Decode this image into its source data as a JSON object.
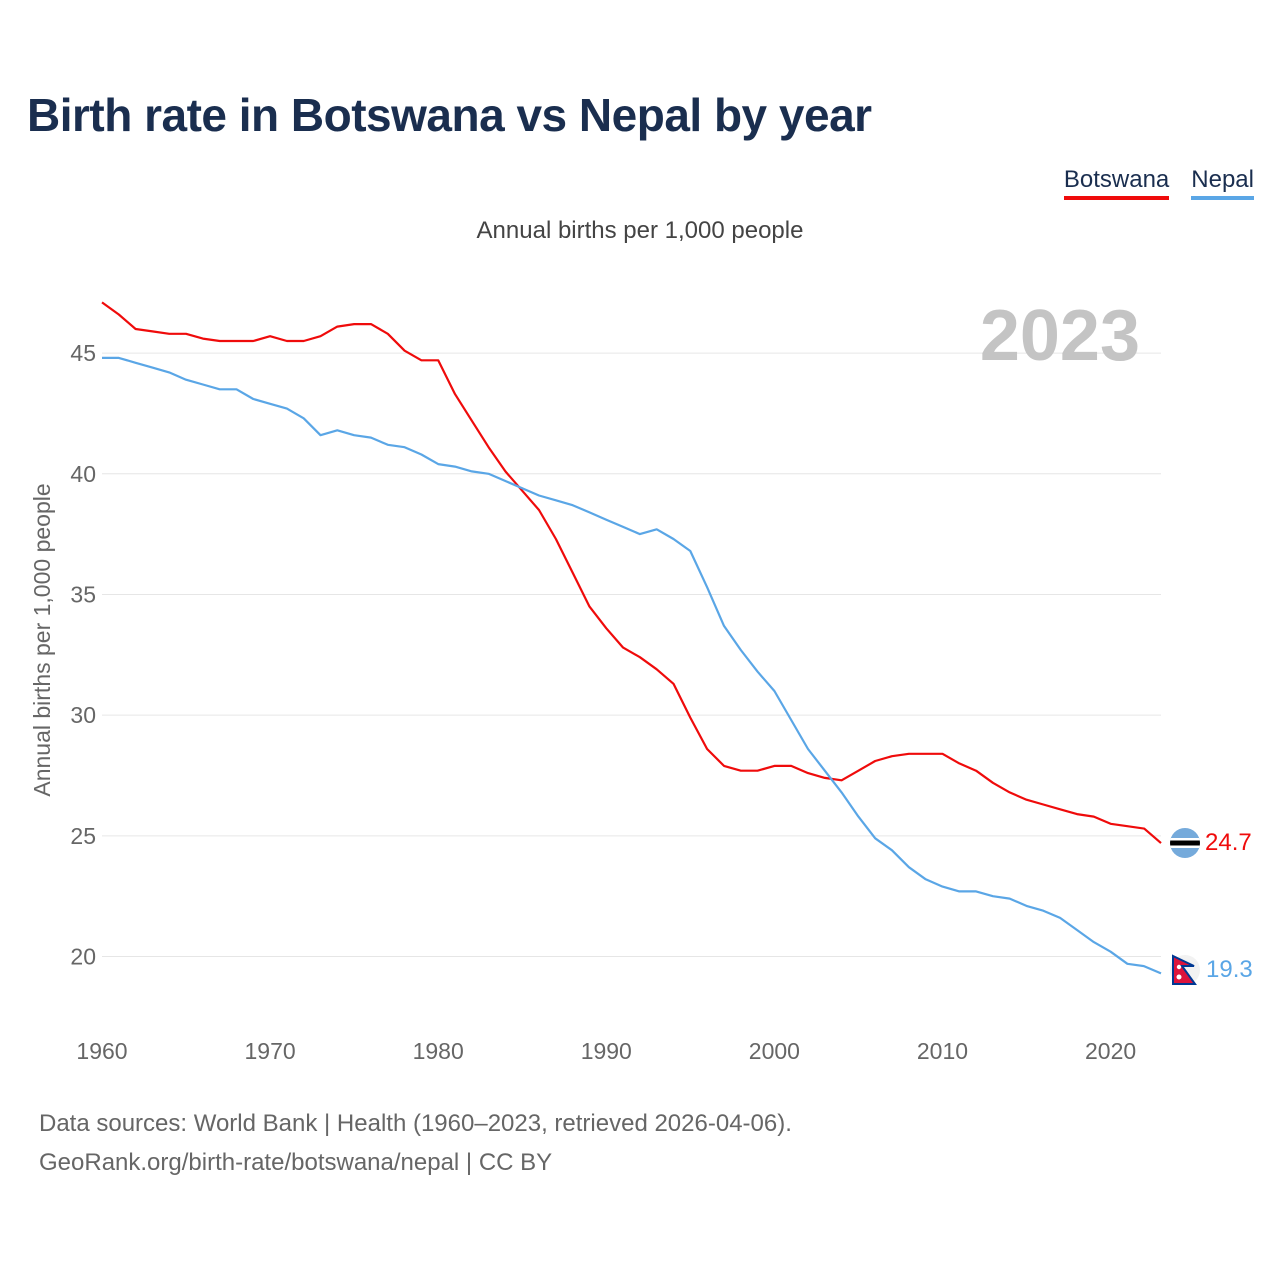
{
  "title": "Birth rate in Botswana vs Nepal by year",
  "subtitle": "Annual births per 1,000 people",
  "legend": [
    "Botswana",
    "Nepal"
  ],
  "year_badge": "2023",
  "footer": {
    "line1": "Data sources: World Bank | Health (1960–2023, retrieved 2026-04-06).",
    "line2": "GeoRank.org/birth-rate/botswana/nepal | CC BY"
  },
  "colors": {
    "botswana": "#ef0b0b",
    "nepal": "#5aa6e6",
    "title": "#1a2e4f",
    "grid": "#e6e6e6"
  },
  "chart_data": {
    "type": "line",
    "title": "Birth rate in Botswana vs Nepal by year",
    "ylabel": "Annual births per 1,000 people",
    "xlabel": "",
    "xlim": [
      1960,
      2023
    ],
    "ylim": [
      18.2,
      47.2
    ],
    "yticks": [
      20,
      25,
      30,
      35,
      40,
      45
    ],
    "xticks": [
      1960,
      1970,
      1980,
      1990,
      2000,
      2010,
      2020
    ],
    "grid": true,
    "legend_position": "top-right",
    "x": [
      1960,
      1961,
      1962,
      1963,
      1964,
      1965,
      1966,
      1967,
      1968,
      1969,
      1970,
      1971,
      1972,
      1973,
      1974,
      1975,
      1976,
      1977,
      1978,
      1979,
      1980,
      1981,
      1982,
      1983,
      1984,
      1985,
      1986,
      1987,
      1988,
      1989,
      1990,
      1991,
      1992,
      1993,
      1994,
      1995,
      1996,
      1997,
      1998,
      1999,
      2000,
      2001,
      2002,
      2003,
      2004,
      2005,
      2006,
      2007,
      2008,
      2009,
      2010,
      2011,
      2012,
      2013,
      2014,
      2015,
      2016,
      2017,
      2018,
      2019,
      2020,
      2021,
      2022,
      2023
    ],
    "series": [
      {
        "name": "Botswana",
        "end_label": "24.7",
        "values": [
          47.1,
          46.6,
          46.0,
          45.9,
          45.8,
          45.8,
          45.6,
          45.5,
          45.5,
          45.5,
          45.7,
          45.5,
          45.5,
          45.7,
          46.1,
          46.2,
          46.2,
          45.8,
          45.1,
          44.7,
          44.7,
          43.3,
          42.2,
          41.1,
          40.1,
          39.3,
          38.5,
          37.3,
          35.9,
          34.5,
          33.6,
          32.8,
          32.4,
          31.9,
          31.3,
          29.9,
          28.6,
          27.9,
          27.7,
          27.7,
          27.9,
          27.9,
          27.6,
          27.4,
          27.3,
          27.7,
          28.1,
          28.3,
          28.4,
          28.4,
          28.4,
          28.0,
          27.7,
          27.2,
          26.8,
          26.5,
          26.3,
          26.1,
          25.9,
          25.8,
          25.5,
          25.4,
          25.3,
          24.7
        ]
      },
      {
        "name": "Nepal",
        "end_label": "19.3",
        "values": [
          44.8,
          44.8,
          44.6,
          44.4,
          44.2,
          43.9,
          43.7,
          43.5,
          43.5,
          43.1,
          42.9,
          42.7,
          42.3,
          41.6,
          41.8,
          41.6,
          41.5,
          41.2,
          41.1,
          40.8,
          40.4,
          40.3,
          40.1,
          40.0,
          39.7,
          39.4,
          39.1,
          38.9,
          38.7,
          38.4,
          38.1,
          37.8,
          37.5,
          37.7,
          37.3,
          36.8,
          35.3,
          33.7,
          32.7,
          31.8,
          31.0,
          29.8,
          28.6,
          27.7,
          26.8,
          25.8,
          24.9,
          24.4,
          23.7,
          23.2,
          22.9,
          22.7,
          22.7,
          22.5,
          22.4,
          22.1,
          21.9,
          21.6,
          21.1,
          20.6,
          20.2,
          19.7,
          19.6,
          19.3
        ]
      }
    ]
  }
}
